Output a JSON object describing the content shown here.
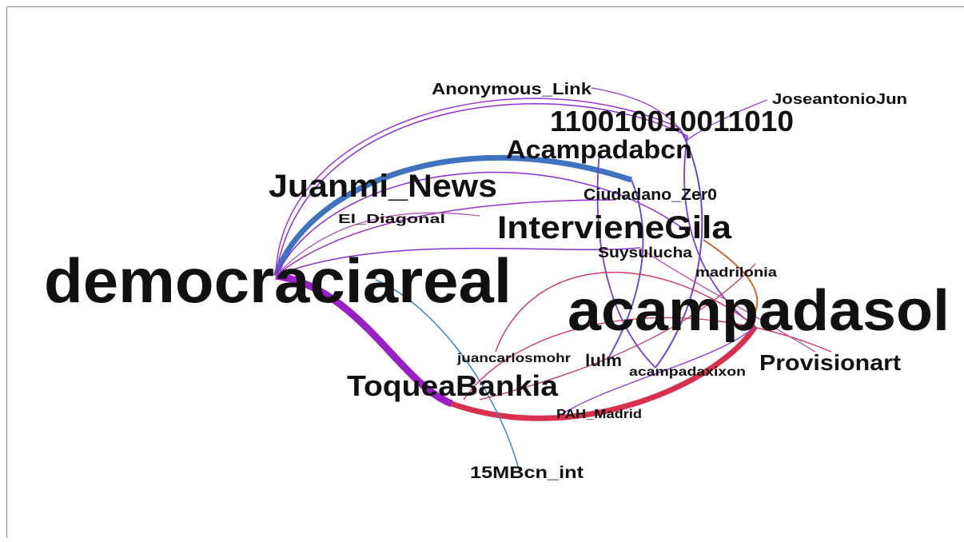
{
  "nodes": [
    {
      "label": "democraciareal"
    },
    {
      "label": "acampadasol"
    },
    {
      "label": "Juanmi_News"
    },
    {
      "label": "IntervieneGila"
    },
    {
      "label": "110010010011010"
    },
    {
      "label": "Acampadabcn"
    },
    {
      "label": "ToqueaBankia"
    },
    {
      "label": "Provisionart"
    },
    {
      "label": "Anonymous_Link"
    },
    {
      "label": "JoseantonioJun"
    },
    {
      "label": "Ciudadano_Zer0"
    },
    {
      "label": "El_Diagonal"
    },
    {
      "label": "Suysulucha"
    },
    {
      "label": "madrilonia"
    },
    {
      "label": "juancarlosmohr"
    },
    {
      "label": "lulm"
    },
    {
      "label": "acampadaxixon"
    },
    {
      "label": "PAH_Madrid"
    },
    {
      "label": "15MBcn_int"
    }
  ]
}
